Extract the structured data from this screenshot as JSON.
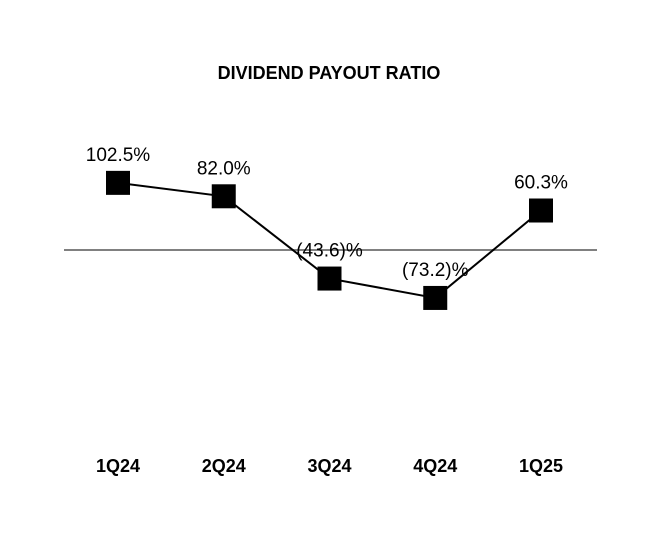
{
  "chart_data": {
    "type": "line",
    "title": "DIVIDEND PAYOUT RATIO",
    "xlabel": "",
    "ylabel": "",
    "categories": [
      "1Q24",
      "2Q24",
      "3Q24",
      "4Q24",
      "1Q25"
    ],
    "series": [
      {
        "values": [
          102.5,
          82.0,
          -43.6,
          -73.2,
          60.3
        ],
        "data_labels": [
          "102.5%",
          "82.0%",
          "(43.6)%",
          "(73.2)%",
          "60.3%"
        ]
      }
    ],
    "ylim": [
      -360,
      360
    ],
    "grid": false,
    "legend": "none",
    "zero_line": true,
    "marker": "square",
    "colors": {
      "line": "#000000",
      "marker": "#000000",
      "zero_line": "#808080",
      "text": "#000000"
    }
  }
}
